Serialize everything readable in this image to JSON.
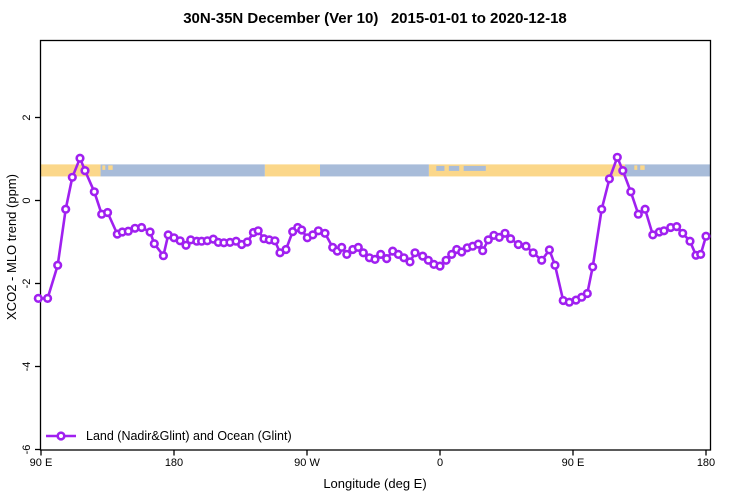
{
  "title": "30N-35N December (Ver 10)   2015-01-01 to 2020-12-18",
  "legend": {
    "entries": [
      {
        "label": "Land (Nadir&Glint) and Ocean (Glint)",
        "color": "#A020F0",
        "marker": "open-circle"
      }
    ]
  },
  "chart_data": {
    "type": "line",
    "title": "30N-35N December (Ver 10)   2015-01-01 to 2020-12-18",
    "xlabel": "Longitude (deg E)",
    "ylabel": "XCO2 - MLO trend (ppm)",
    "xlim": [
      90,
      540
    ],
    "ylim": [
      -6.05,
      3.86
    ],
    "grid": false,
    "legend_position": "bottom-left",
    "x_ticks": [
      {
        "value": 90,
        "label": "90 E"
      },
      {
        "value": 180,
        "label": "180"
      },
      {
        "value": 270,
        "label": "90 W"
      },
      {
        "value": 360,
        "label": "0"
      },
      {
        "value": 450,
        "label": "90 E"
      },
      {
        "value": 540,
        "label": "180"
      }
    ],
    "y_ticks": [
      {
        "value": 2,
        "label": "2"
      },
      {
        "value": 0,
        "label": "0"
      },
      {
        "value": -2,
        "label": "-2"
      },
      {
        "value": -4,
        "label": "-4"
      },
      {
        "value": -6,
        "label": "-6"
      }
    ],
    "series": [
      {
        "name": "Land (Nadir&Glint) and Ocean (Glint)",
        "color": "#A020F0",
        "marker": "open-circle",
        "points": [
          [
            88.2,
            -2.36
          ],
          [
            94.5,
            -2.36
          ],
          [
            101.3,
            -1.56
          ],
          [
            106.7,
            -0.21
          ],
          [
            111.2,
            0.56
          ],
          [
            116.4,
            1.02
          ],
          [
            119.8,
            0.72
          ],
          [
            126.1,
            0.21
          ],
          [
            131.1,
            -0.33
          ],
          [
            135.1,
            -0.29
          ],
          [
            141.6,
            -0.81
          ],
          [
            145.0,
            -0.76
          ],
          [
            149.1,
            -0.74
          ],
          [
            153.6,
            -0.67
          ],
          [
            158.1,
            -0.65
          ],
          [
            163.8,
            -0.76
          ],
          [
            166.7,
            -1.04
          ],
          [
            172.8,
            -1.33
          ],
          [
            176.1,
            -0.83
          ],
          [
            180.0,
            -0.9
          ],
          [
            184.1,
            -0.97
          ],
          [
            188.1,
            -1.08
          ],
          [
            191.3,
            -0.95
          ],
          [
            195.4,
            -0.98
          ],
          [
            198.7,
            -0.98
          ],
          [
            202.5,
            -0.97
          ],
          [
            206.6,
            -0.93
          ],
          [
            210.0,
            -1.01
          ],
          [
            213.8,
            -1.02
          ],
          [
            217.9,
            -1.01
          ],
          [
            222.0,
            -0.98
          ],
          [
            225.8,
            -1.06
          ],
          [
            229.6,
            -1.0
          ],
          [
            233.7,
            -0.77
          ],
          [
            237.0,
            -0.73
          ],
          [
            240.9,
            -0.92
          ],
          [
            244.5,
            -0.95
          ],
          [
            248.3,
            -0.97
          ],
          [
            251.7,
            -1.26
          ],
          [
            255.8,
            -1.18
          ],
          [
            260.3,
            -0.75
          ],
          [
            263.7,
            -0.65
          ],
          [
            266.4,
            -0.71
          ],
          [
            270.2,
            -0.9
          ],
          [
            273.9,
            -0.83
          ],
          [
            277.7,
            -0.73
          ],
          [
            282.2,
            -0.79
          ],
          [
            287.4,
            -1.13
          ],
          [
            290.5,
            -1.22
          ],
          [
            293.5,
            -1.13
          ],
          [
            296.9,
            -1.3
          ],
          [
            301.0,
            -1.18
          ],
          [
            304.7,
            -1.13
          ],
          [
            308.1,
            -1.26
          ],
          [
            312.2,
            -1.38
          ],
          [
            316.0,
            -1.42
          ],
          [
            319.9,
            -1.3
          ],
          [
            323.9,
            -1.4
          ],
          [
            328.0,
            -1.22
          ],
          [
            331.8,
            -1.3
          ],
          [
            335.6,
            -1.38
          ],
          [
            339.7,
            -1.48
          ],
          [
            343.1,
            -1.26
          ],
          [
            348.3,
            -1.34
          ],
          [
            352.1,
            -1.44
          ],
          [
            355.9,
            -1.54
          ],
          [
            360.0,
            -1.58
          ],
          [
            364.1,
            -1.44
          ],
          [
            367.9,
            -1.3
          ],
          [
            371.3,
            -1.18
          ],
          [
            374.7,
            -1.24
          ],
          [
            378.5,
            -1.14
          ],
          [
            382.1,
            -1.1
          ],
          [
            385.9,
            -1.05
          ],
          [
            388.9,
            -1.21
          ],
          [
            392.7,
            -0.95
          ],
          [
            396.5,
            -0.84
          ],
          [
            400.1,
            -0.89
          ],
          [
            404.0,
            -0.79
          ],
          [
            407.8,
            -0.92
          ],
          [
            413.0,
            -1.06
          ],
          [
            418.2,
            -1.1
          ],
          [
            423.1,
            -1.26
          ],
          [
            428.8,
            -1.44
          ],
          [
            434.0,
            -1.19
          ],
          [
            437.8,
            -1.56
          ],
          [
            443.4,
            -2.41
          ],
          [
            447.5,
            -2.45
          ],
          [
            452.0,
            -2.4
          ],
          [
            455.9,
            -2.33
          ],
          [
            459.7,
            -2.24
          ],
          [
            463.3,
            -1.6
          ],
          [
            469.4,
            -0.21
          ],
          [
            474.6,
            0.52
          ],
          [
            480.0,
            1.04
          ],
          [
            483.7,
            0.72
          ],
          [
            489.1,
            0.21
          ],
          [
            494.2,
            -0.33
          ],
          [
            498.8,
            -0.21
          ],
          [
            504.0,
            -0.83
          ],
          [
            508.4,
            -0.76
          ],
          [
            511.6,
            -0.73
          ],
          [
            516.1,
            -0.65
          ],
          [
            520.2,
            -0.63
          ],
          [
            524.2,
            -0.79
          ],
          [
            529.2,
            -0.98
          ],
          [
            533.2,
            -1.32
          ],
          [
            536.4,
            -1.3
          ],
          [
            540.0,
            -0.86
          ]
        ]
      }
    ],
    "map_band": {
      "description": "30N-35N latitude strip map: land vs ocean along longitude",
      "band_ppm": [
        0.58,
        0.87
      ],
      "ocean_color": "#A8BCD9",
      "land_color": "#FBD78A",
      "segments": [
        {
          "from": 89.3,
          "to": 130.3,
          "surface": "land"
        },
        {
          "from": 130.3,
          "to": 241.5,
          "surface": "ocean"
        },
        {
          "from": 241.5,
          "to": 278.8,
          "surface": "land"
        },
        {
          "from": 278.8,
          "to": 352.5,
          "surface": "ocean"
        },
        {
          "from": 352.5,
          "to": 485.2,
          "surface": "land"
        },
        {
          "from": 485.2,
          "to": 543.4,
          "surface": "ocean"
        }
      ],
      "islands": [
        [
          131.5,
          133.5
        ],
        [
          135.5,
          138.5
        ],
        [
          491.5,
          493.5
        ],
        [
          495.5,
          498.5
        ]
      ],
      "inlets": [
        [
          357.5,
          363.0
        ],
        [
          366.0,
          373.0
        ],
        [
          376.0,
          391.0
        ]
      ]
    }
  }
}
